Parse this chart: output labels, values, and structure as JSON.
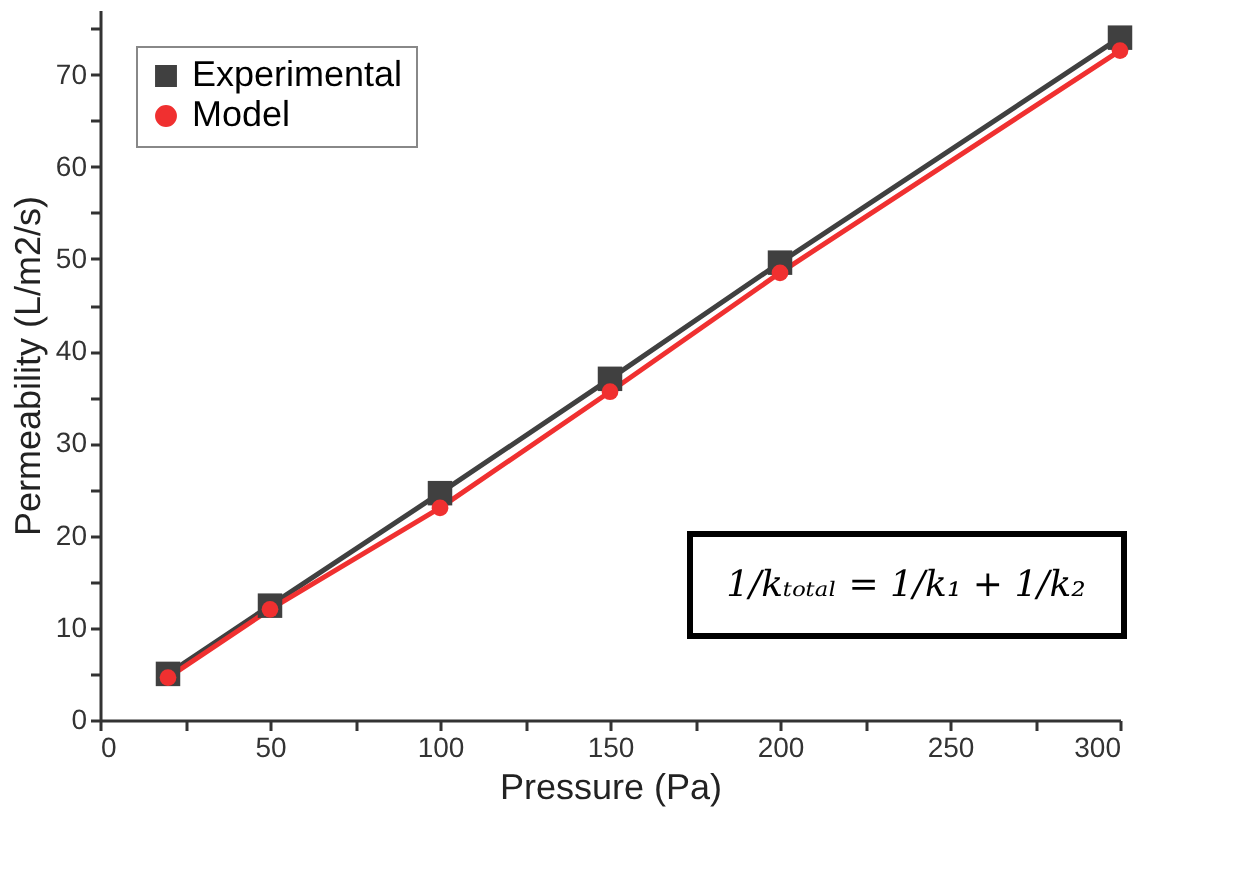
{
  "chart_data": {
    "type": "line",
    "xlabel": "Pressure (Pa)",
    "ylabel": "Permeability (L/m2/s)",
    "x": [
      20,
      50,
      100,
      150,
      200,
      300
    ],
    "series": [
      {
        "name": "Experimental",
        "color": "#404040",
        "marker": "square",
        "values": [
          5.0,
          12.4,
          24.6,
          37.0,
          49.6,
          74.0
        ]
      },
      {
        "name": "Model",
        "color": "#f03030",
        "marker": "circle",
        "values": [
          4.6,
          12.0,
          23.0,
          35.6,
          48.5,
          72.6
        ]
      }
    ],
    "xlim": [
      0,
      300
    ],
    "ylim": [
      0,
      77
    ],
    "xticks": [
      0,
      {
        "value": 25,
        "label": null
      },
      50,
      {
        "value": 75,
        "label": null
      },
      100,
      {
        "value": 125,
        "label": null
      },
      150,
      {
        "value": 175,
        "label": null
      },
      200,
      {
        "value": 225,
        "label": null
      },
      250,
      {
        "value": 275,
        "label": null
      },
      300
    ],
    "yticks": [
      0,
      {
        "value": 5,
        "label": null
      },
      10,
      {
        "value": 15,
        "label": null
      },
      20,
      {
        "value": 25,
        "label": null
      },
      30,
      {
        "value": 35,
        "label": null
      },
      40,
      {
        "value": 45,
        "label": null
      },
      50,
      {
        "value": 55,
        "label": null
      },
      60,
      {
        "value": 65,
        "label": null
      },
      70,
      {
        "value": 75,
        "label": null
      }
    ],
    "grid": false,
    "legend": "top left",
    "line_style": "solid",
    "annotations": [
      "1/kₜₒₜₐₗ = 1/k₁ + 1/k₂"
    ]
  }
}
